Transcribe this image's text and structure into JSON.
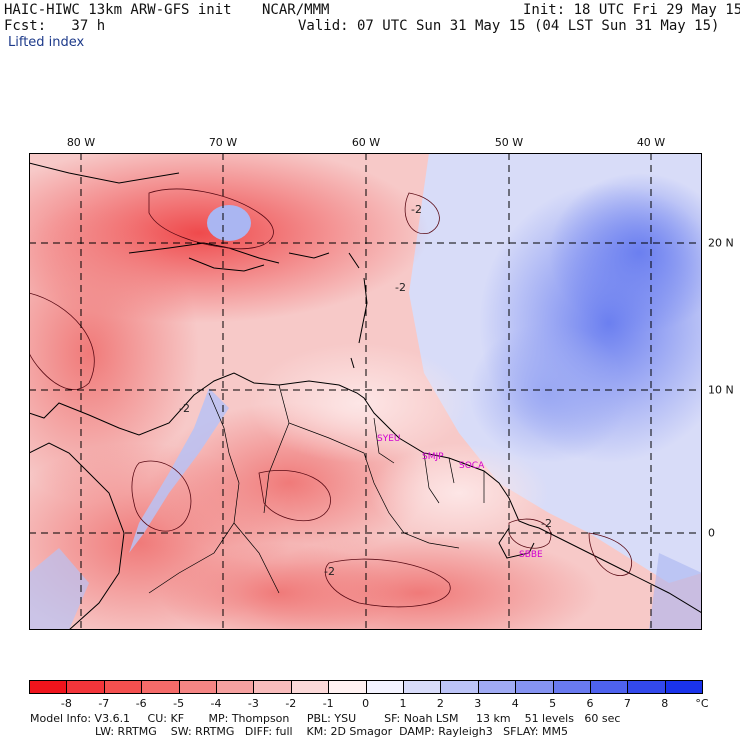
{
  "header": {
    "model": "HAIC-HIWC 13km ARW-GFS init",
    "org": "NCAR/MMM",
    "init": "Init: 18 UTC Fri 29 May 15",
    "fcst": "Fcst:   37 h",
    "valid": "Valid: 07 UTC Sun 31 May 15 (04 LST Sun 31 May 15)",
    "field": "Lifted index"
  },
  "map": {
    "lon_labels": [
      "80 W",
      "70 W",
      "60 W",
      "50 W",
      "40 W"
    ],
    "lat_labels": [
      "20 N",
      "10 N",
      "0"
    ],
    "stations": [
      "SYEU",
      "SMJP",
      "SOCA",
      "SBBE"
    ],
    "contour_label": "-2",
    "colors": {
      "negative": "#e8282a",
      "neutral": "#ffffff",
      "positive": "#3050f0"
    }
  },
  "colorbar": {
    "ticks": [
      "-8",
      "-7",
      "-6",
      "-5",
      "-4",
      "-3",
      "-2",
      "-1",
      "0",
      "1",
      "2",
      "3",
      "4",
      "5",
      "6",
      "7",
      "8"
    ],
    "unit": "°C",
    "colors": [
      "#f0141c",
      "#f3353a",
      "#f4504f",
      "#f56b69",
      "#f58584",
      "#f6a1a0",
      "#f8bcbc",
      "#fbd8d8",
      "#fff1f1",
      "#f3f3ff",
      "#d8dcfa",
      "#bcc4f7",
      "#a0abf4",
      "#8593f2",
      "#697af0",
      "#4e62ee",
      "#3349ec",
      "#1a33eb"
    ]
  },
  "footer": {
    "line1": "Model Info: V3.6.1     CU: KF       MP: Thompson     PBL: YSU        SF: Noah LSM     13 km    51 levels   60 sec",
    "line2": "LW: RRTMG    SW: RRTMG   DIFF: full    KM: 2D Smagor  DAMP: Rayleigh3   SFLAY: MM5"
  }
}
